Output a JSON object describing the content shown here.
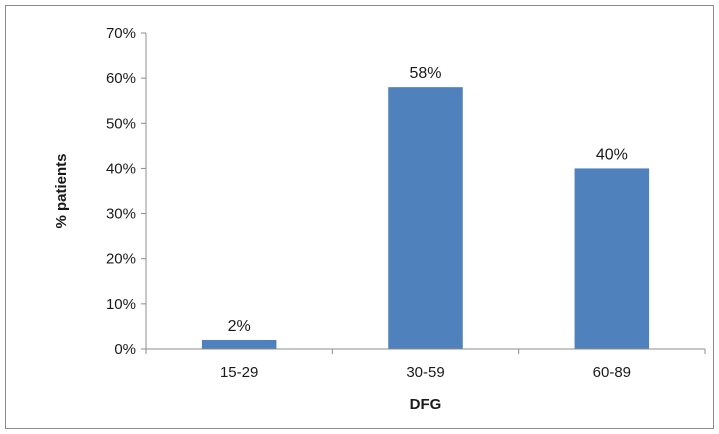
{
  "chart_data": {
    "type": "bar",
    "categories": [
      "15-29",
      "30-59",
      "60-89"
    ],
    "values": [
      2,
      58,
      40
    ],
    "data_labels": [
      "2%",
      "58%",
      "40%"
    ],
    "title": "",
    "xlabel": "DFG",
    "ylabel": "% patients",
    "ylim": [
      0,
      70
    ],
    "yticks": [
      0,
      10,
      20,
      30,
      40,
      50,
      60,
      70
    ],
    "ytick_labels": [
      "0%",
      "10%",
      "20%",
      "30%",
      "40%",
      "50%",
      "60%",
      "70%"
    ],
    "grid": false,
    "legend": "none",
    "colors": {
      "bar": "#4f81bd",
      "axis": "#8c8c8c"
    }
  }
}
